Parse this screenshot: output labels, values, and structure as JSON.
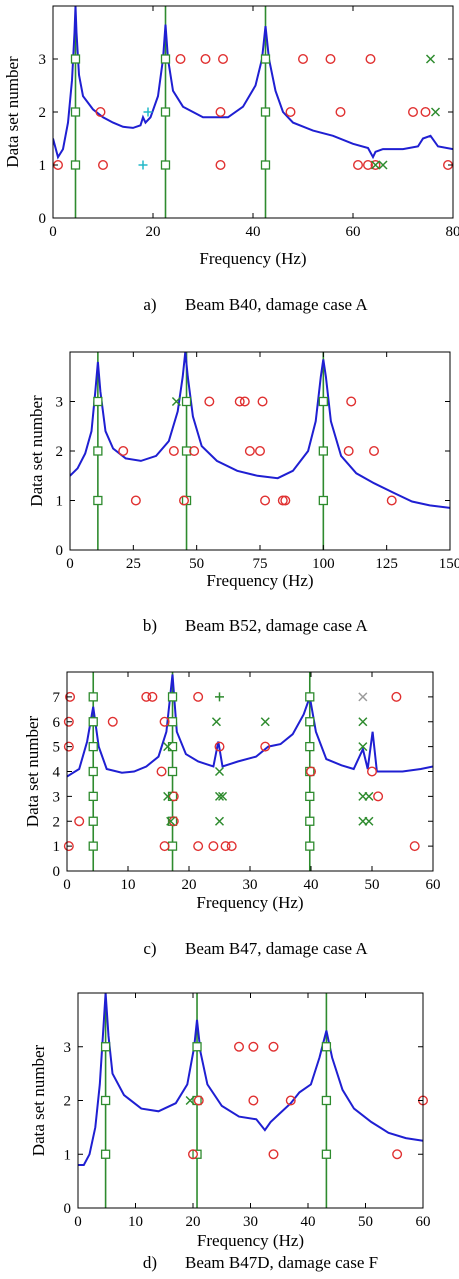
{
  "colors": {
    "curve": "#1f1fd2",
    "vertical_line": "#2e8b2e",
    "square": "#2e8b2e",
    "circle": "#e03030",
    "cross": "#2e8b2e",
    "plus_cyan": "#22b8c8",
    "plus_green": "#2e8b2e",
    "cross_gray": "#9a9a9a",
    "axis": "#000000"
  },
  "chart_data": [
    {
      "type": "scatter",
      "caption_label": "a)",
      "caption_text": "Beam B40, damage case A",
      "xlabel": "Frequency (Hz)",
      "ylabel": "Data set number",
      "xlim": [
        0,
        80
      ],
      "ylim": [
        0,
        4
      ],
      "xticks": [
        0,
        20,
        40,
        60,
        80
      ],
      "yticks": [
        0,
        1,
        2,
        3
      ],
      "grid": false,
      "vertical_lines": [
        4.5,
        22.5,
        42.5
      ],
      "squares": [
        [
          4.5,
          1
        ],
        [
          4.5,
          2
        ],
        [
          4.5,
          3
        ],
        [
          22.5,
          1
        ],
        [
          22.5,
          2
        ],
        [
          22.5,
          3
        ],
        [
          42.5,
          1
        ],
        [
          42.5,
          2
        ],
        [
          42.5,
          3
        ]
      ],
      "circles": [
        [
          1,
          1
        ],
        [
          9.5,
          2
        ],
        [
          10,
          1
        ],
        [
          25.5,
          3
        ],
        [
          30.5,
          3
        ],
        [
          34,
          3
        ],
        [
          33.5,
          2
        ],
        [
          33.5,
          1
        ],
        [
          47.5,
          2
        ],
        [
          50,
          3
        ],
        [
          55.5,
          3
        ],
        [
          57.5,
          2
        ],
        [
          63.5,
          3
        ],
        [
          61,
          1
        ],
        [
          63,
          1
        ],
        [
          64.5,
          1
        ],
        [
          72,
          2
        ],
        [
          74.5,
          2
        ],
        [
          79,
          1
        ]
      ],
      "crosses": [
        [
          64.5,
          1
        ],
        [
          66,
          1
        ],
        [
          75.5,
          3
        ],
        [
          76.5,
          2
        ]
      ],
      "plus_cyan": [
        [
          19,
          2
        ],
        [
          18,
          1
        ]
      ],
      "plus_green": [],
      "crosses_gray": [],
      "curve": [
        [
          0,
          1.5
        ],
        [
          1,
          1.15
        ],
        [
          2,
          1.3
        ],
        [
          3,
          1.8
        ],
        [
          3.8,
          2.6
        ],
        [
          4.3,
          3.5
        ],
        [
          4.5,
          4.0
        ],
        [
          4.7,
          3.5
        ],
        [
          5.2,
          2.7
        ],
        [
          6,
          2.3
        ],
        [
          8,
          2.05
        ],
        [
          10,
          1.9
        ],
        [
          12,
          1.8
        ],
        [
          14,
          1.72
        ],
        [
          16,
          1.7
        ],
        [
          17.5,
          1.75
        ],
        [
          18,
          1.9
        ],
        [
          18.5,
          1.8
        ],
        [
          19.5,
          1.9
        ],
        [
          21,
          2.3
        ],
        [
          22,
          3.0
        ],
        [
          22.5,
          3.65
        ],
        [
          23,
          3.0
        ],
        [
          24,
          2.4
        ],
        [
          26,
          2.1
        ],
        [
          30,
          1.9
        ],
        [
          35,
          1.9
        ],
        [
          38,
          2.1
        ],
        [
          40.5,
          2.5
        ],
        [
          41.8,
          3.0
        ],
        [
          42.5,
          3.62
        ],
        [
          43.2,
          3.0
        ],
        [
          44.5,
          2.4
        ],
        [
          46,
          2.0
        ],
        [
          48,
          1.8
        ],
        [
          52,
          1.65
        ],
        [
          56,
          1.55
        ],
        [
          60,
          1.4
        ],
        [
          63,
          1.32
        ],
        [
          64,
          1.15
        ],
        [
          64.5,
          1.25
        ],
        [
          66,
          1.3
        ],
        [
          70,
          1.3
        ],
        [
          73,
          1.35
        ],
        [
          74,
          1.5
        ],
        [
          75.5,
          1.55
        ],
        [
          77,
          1.35
        ],
        [
          80,
          1.3
        ]
      ]
    },
    {
      "type": "scatter",
      "caption_label": "b)",
      "caption_text": "Beam B52, damage case A",
      "xlabel": "Frequency (Hz)",
      "ylabel": "Data set number",
      "xlim": [
        0,
        150
      ],
      "ylim": [
        0,
        4
      ],
      "xticks": [
        0,
        25,
        50,
        75,
        100,
        125,
        150
      ],
      "yticks": [
        0,
        1,
        2,
        3
      ],
      "grid": false,
      "vertical_lines": [
        11,
        46,
        100
      ],
      "squares": [
        [
          11,
          1
        ],
        [
          11,
          2
        ],
        [
          11,
          3
        ],
        [
          46,
          1
        ],
        [
          46,
          2
        ],
        [
          46,
          3
        ],
        [
          100,
          1
        ],
        [
          100,
          2
        ],
        [
          100,
          3
        ]
      ],
      "circles": [
        [
          21,
          2
        ],
        [
          26,
          1
        ],
        [
          41,
          2
        ],
        [
          45,
          1
        ],
        [
          49,
          2
        ],
        [
          55,
          3
        ],
        [
          67,
          3
        ],
        [
          69,
          3
        ],
        [
          76,
          3
        ],
        [
          71,
          2
        ],
        [
          75,
          2
        ],
        [
          77,
          1
        ],
        [
          84,
          1
        ],
        [
          85,
          1
        ],
        [
          110,
          2
        ],
        [
          111,
          3
        ],
        [
          120,
          2
        ],
        [
          127,
          1
        ]
      ],
      "crosses": [
        [
          42,
          3
        ]
      ],
      "plus_cyan": [],
      "plus_green": [],
      "crosses_gray": [],
      "curve": [
        [
          0,
          1.5
        ],
        [
          3,
          1.65
        ],
        [
          6,
          1.95
        ],
        [
          8.5,
          2.4
        ],
        [
          10,
          3.2
        ],
        [
          11,
          3.8
        ],
        [
          12,
          3.2
        ],
        [
          14,
          2.4
        ],
        [
          17,
          2.05
        ],
        [
          22,
          1.85
        ],
        [
          28,
          1.8
        ],
        [
          34,
          1.9
        ],
        [
          39,
          2.2
        ],
        [
          42.5,
          2.8
        ],
        [
          44.5,
          3.5
        ],
        [
          45.5,
          4.0
        ],
        [
          46.5,
          3.5
        ],
        [
          48.5,
          2.7
        ],
        [
          52,
          2.1
        ],
        [
          58,
          1.8
        ],
        [
          66,
          1.6
        ],
        [
          74,
          1.5
        ],
        [
          82,
          1.45
        ],
        [
          88,
          1.6
        ],
        [
          94,
          2.0
        ],
        [
          97,
          2.6
        ],
        [
          99,
          3.5
        ],
        [
          100,
          3.85
        ],
        [
          101,
          3.5
        ],
        [
          103,
          2.6
        ],
        [
          107,
          1.9
        ],
        [
          113,
          1.55
        ],
        [
          120,
          1.35
        ],
        [
          128,
          1.15
        ],
        [
          135,
          0.98
        ],
        [
          142,
          0.9
        ],
        [
          150,
          0.85
        ]
      ]
    },
    {
      "type": "scatter",
      "caption_label": "c)",
      "caption_text": "Beam B47, damage case A",
      "xlabel": "Frequency (Hz)",
      "ylabel": "Data set number",
      "xlim": [
        0,
        60
      ],
      "ylim": [
        0,
        8
      ],
      "xticks": [
        0,
        10,
        20,
        30,
        40,
        50,
        60
      ],
      "yticks": [
        0,
        1,
        2,
        3,
        4,
        5,
        6,
        7
      ],
      "grid": false,
      "vertical_lines": [
        4.3,
        17.3,
        39.8
      ],
      "squares": [
        [
          4.3,
          1
        ],
        [
          4.3,
          2
        ],
        [
          4.3,
          3
        ],
        [
          4.3,
          4
        ],
        [
          4.3,
          5
        ],
        [
          4.3,
          6
        ],
        [
          4.3,
          7
        ],
        [
          17.3,
          1
        ],
        [
          17.3,
          2
        ],
        [
          17.3,
          3
        ],
        [
          17.3,
          4
        ],
        [
          17.3,
          5
        ],
        [
          17.3,
          6
        ],
        [
          17.3,
          7
        ],
        [
          39.8,
          1
        ],
        [
          39.8,
          2
        ],
        [
          39.8,
          3
        ],
        [
          39.8,
          4
        ],
        [
          39.8,
          5
        ],
        [
          39.8,
          6
        ],
        [
          39.8,
          7
        ]
      ],
      "circles": [
        [
          0.5,
          7
        ],
        [
          0.3,
          6
        ],
        [
          0.3,
          5
        ],
        [
          0.3,
          1
        ],
        [
          2,
          2
        ],
        [
          7.5,
          6
        ],
        [
          13,
          7
        ],
        [
          14,
          7
        ],
        [
          16,
          6
        ],
        [
          15.5,
          4
        ],
        [
          16,
          1
        ],
        [
          17.5,
          3
        ],
        [
          17.5,
          2
        ],
        [
          21.5,
          7
        ],
        [
          21.5,
          1
        ],
        [
          24,
          1
        ],
        [
          26,
          1
        ],
        [
          27,
          1
        ],
        [
          25,
          5
        ],
        [
          32.5,
          5
        ],
        [
          40,
          4
        ],
        [
          50,
          4
        ],
        [
          51,
          3
        ],
        [
          54,
          7
        ],
        [
          57,
          1
        ]
      ],
      "crosses": [
        [
          16.5,
          5
        ],
        [
          16.5,
          3
        ],
        [
          17,
          2
        ],
        [
          24.5,
          6
        ],
        [
          25,
          4
        ],
        [
          25,
          3
        ],
        [
          25.5,
          3
        ],
        [
          25,
          2
        ],
        [
          32.5,
          6
        ],
        [
          48.5,
          6
        ],
        [
          48.5,
          5
        ],
        [
          48.5,
          3
        ],
        [
          49.5,
          3
        ],
        [
          48.5,
          2
        ],
        [
          49.5,
          2
        ]
      ],
      "plus_cyan": [],
      "plus_green": [
        [
          25,
          7
        ]
      ],
      "crosses_gray": [
        [
          48.5,
          7
        ]
      ],
      "curve": [
        [
          0,
          3.8
        ],
        [
          2,
          4.1
        ],
        [
          3.3,
          5.2
        ],
        [
          4.3,
          6.6
        ],
        [
          5.2,
          5.0
        ],
        [
          6.5,
          4.1
        ],
        [
          9,
          3.95
        ],
        [
          11,
          4.0
        ],
        [
          13,
          4.2
        ],
        [
          15,
          4.6
        ],
        [
          16.3,
          5.6
        ],
        [
          17.3,
          7.9
        ],
        [
          18,
          5.6
        ],
        [
          19.5,
          4.7
        ],
        [
          21.5,
          4.4
        ],
        [
          24,
          4.2
        ],
        [
          24.8,
          5.2
        ],
        [
          25.5,
          4.2
        ],
        [
          28,
          4.4
        ],
        [
          31,
          4.6
        ],
        [
          33,
          5.0
        ],
        [
          35,
          5.1
        ],
        [
          37,
          5.5
        ],
        [
          38.8,
          6.3
        ],
        [
          39.8,
          7.0
        ],
        [
          40.8,
          5.6
        ],
        [
          42.5,
          4.5
        ],
        [
          45,
          4.25
        ],
        [
          47,
          4.1
        ],
        [
          48.5,
          4.9
        ],
        [
          49.3,
          4.1
        ],
        [
          50.1,
          5.6
        ],
        [
          50.8,
          4.0
        ],
        [
          52,
          4.0
        ],
        [
          55,
          4.0
        ],
        [
          58,
          4.1
        ],
        [
          60,
          4.2
        ]
      ]
    },
    {
      "type": "scatter",
      "caption_label": "d)",
      "caption_text": "Beam B47D, damage case F",
      "xlabel": "Frequency (Hz)",
      "ylabel": "Data set number",
      "xlim": [
        0,
        60
      ],
      "ylim": [
        0,
        4
      ],
      "xticks": [
        0,
        10,
        20,
        30,
        40,
        50,
        60
      ],
      "yticks": [
        0,
        1,
        2,
        3
      ],
      "grid": false,
      "vertical_lines": [
        4.8,
        20.7,
        43.2
      ],
      "squares": [
        [
          4.8,
          1
        ],
        [
          4.8,
          2
        ],
        [
          4.8,
          3
        ],
        [
          20.7,
          1
        ],
        [
          20.7,
          2
        ],
        [
          20.7,
          3
        ],
        [
          43.2,
          1
        ],
        [
          43.2,
          2
        ],
        [
          43.2,
          3
        ]
      ],
      "circles": [
        [
          20,
          1
        ],
        [
          21,
          2
        ],
        [
          28,
          3
        ],
        [
          30.5,
          3
        ],
        [
          30.5,
          2
        ],
        [
          34,
          3
        ],
        [
          34,
          1
        ],
        [
          37,
          2
        ],
        [
          55.5,
          1
        ],
        [
          60,
          2
        ]
      ],
      "crosses": [
        [
          19.5,
          2
        ]
      ],
      "plus_cyan": [],
      "plus_green": [],
      "crosses_gray": [],
      "curve": [
        [
          0,
          0.8
        ],
        [
          1,
          0.8
        ],
        [
          2,
          1.0
        ],
        [
          3,
          1.5
        ],
        [
          3.8,
          2.3
        ],
        [
          4.5,
          3.5
        ],
        [
          4.8,
          4.0
        ],
        [
          5.3,
          3.2
        ],
        [
          6,
          2.5
        ],
        [
          8,
          2.1
        ],
        [
          11,
          1.85
        ],
        [
          14,
          1.8
        ],
        [
          17,
          1.95
        ],
        [
          19,
          2.3
        ],
        [
          20.2,
          3.0
        ],
        [
          20.7,
          3.5
        ],
        [
          21.3,
          2.9
        ],
        [
          22.5,
          2.3
        ],
        [
          25,
          1.9
        ],
        [
          28,
          1.7
        ],
        [
          31,
          1.65
        ],
        [
          32.5,
          1.45
        ],
        [
          33.5,
          1.6
        ],
        [
          35,
          1.75
        ],
        [
          37,
          1.95
        ],
        [
          38.5,
          2.15
        ],
        [
          40.5,
          2.3
        ],
        [
          42,
          2.8
        ],
        [
          43.2,
          3.3
        ],
        [
          44.2,
          2.8
        ],
        [
          46,
          2.2
        ],
        [
          48,
          1.85
        ],
        [
          51,
          1.6
        ],
        [
          54,
          1.4
        ],
        [
          57,
          1.3
        ],
        [
          60,
          1.25
        ]
      ]
    }
  ]
}
